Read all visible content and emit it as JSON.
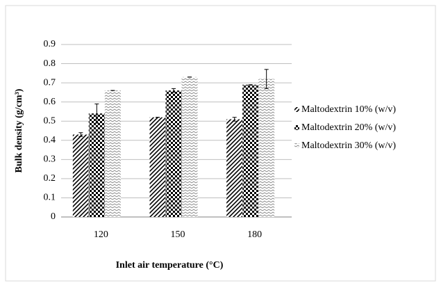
{
  "chart_data": {
    "type": "bar",
    "x_label": "Inlet air temperature (°C)",
    "y_label": "Bulk density (g/cm³)",
    "categories": [
      "120",
      "150",
      "180"
    ],
    "series": [
      {
        "name": "Maltodextrin 10% (w/v)",
        "color": "#000000",
        "pattern": "diagonal",
        "values": [
          0.43,
          0.52,
          0.51
        ],
        "errors": [
          0.01,
          0,
          0.01
        ]
      },
      {
        "name": "Maltodextrin 20% (w/v)",
        "color": "#000000",
        "pattern": "checker",
        "values": [
          0.54,
          0.66,
          0.69
        ],
        "errors": [
          0.05,
          0.01,
          0
        ]
      },
      {
        "name": "Maltodextrin 30% (w/v)",
        "color": "#808080",
        "pattern": "zigzag",
        "values": [
          0.66,
          0.73,
          0.72
        ],
        "errors": [
          0,
          0,
          0.05
        ]
      }
    ],
    "ylim": [
      0,
      0.9
    ],
    "yticks": [
      0,
      0.1,
      0.2,
      0.3,
      0.4,
      0.5,
      0.6,
      0.7,
      0.8,
      0.9
    ],
    "grid": true,
    "legend": "right"
  }
}
